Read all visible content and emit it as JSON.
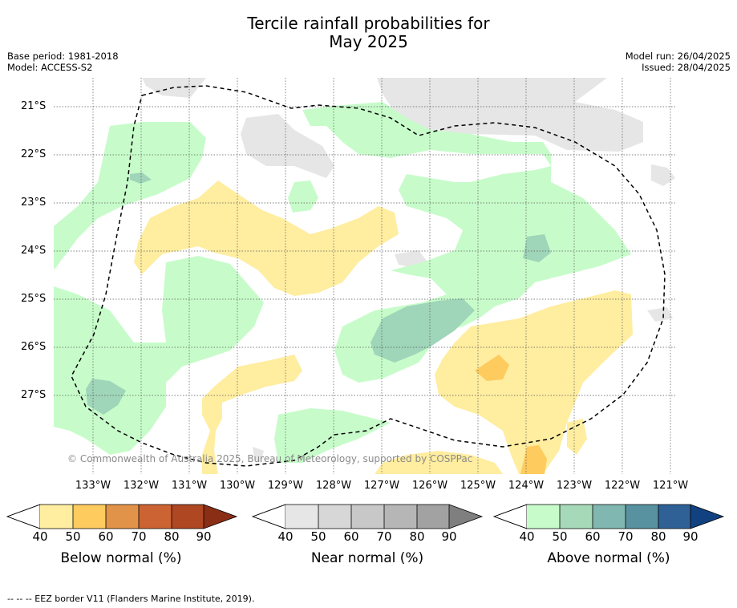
{
  "title_line1": "Tercile rainfall probabilities for",
  "title_line2": "May 2025",
  "base_period": "Base period: 1981-2018",
  "model": "Model: ACCESS-S2",
  "model_run": "Model run: 26/04/2025",
  "issued": "Issued: 28/04/2025",
  "lat_labels": [
    "21°S",
    "22°S",
    "23°S",
    "24°S",
    "25°S",
    "26°S",
    "27°S"
  ],
  "lon_labels": [
    "133°W",
    "132°W",
    "131°W",
    "130°W",
    "129°W",
    "128°W",
    "127°W",
    "126°W",
    "125°W",
    "124°W",
    "123°W",
    "122°W",
    "121°W"
  ],
  "copyright": "© Commonwealth of Australia 2025, Bureau of Meteorology, supported by COSPPac",
  "colorbars": [
    {
      "title": "Below normal (%)",
      "ticks": [
        "40",
        "50",
        "60",
        "70",
        "80",
        "90"
      ],
      "colors": [
        "#ffeda0",
        "#fecb5f",
        "#e1934a",
        "#cc6333",
        "#ae4722",
        "#8b2e16"
      ]
    },
    {
      "title": "Near normal (%)",
      "ticks": [
        "40",
        "50",
        "60",
        "70",
        "80",
        "90"
      ],
      "colors": [
        "#e6e6e6",
        "#d7d7d7",
        "#c8c8c8",
        "#b6b6b6",
        "#a2a2a2",
        "#7f7f7f"
      ]
    },
    {
      "title": "Above normal (%)",
      "ticks": [
        "40",
        "50",
        "60",
        "70",
        "80",
        "90"
      ],
      "colors": [
        "#c7fcca",
        "#a6d9b7",
        "#80b7b0",
        "#58919f",
        "#2f6197",
        "#114181"
      ]
    }
  ],
  "footer": "--  --  -- EEZ border V11 (Flanders Marine Institute, 2019)."
}
